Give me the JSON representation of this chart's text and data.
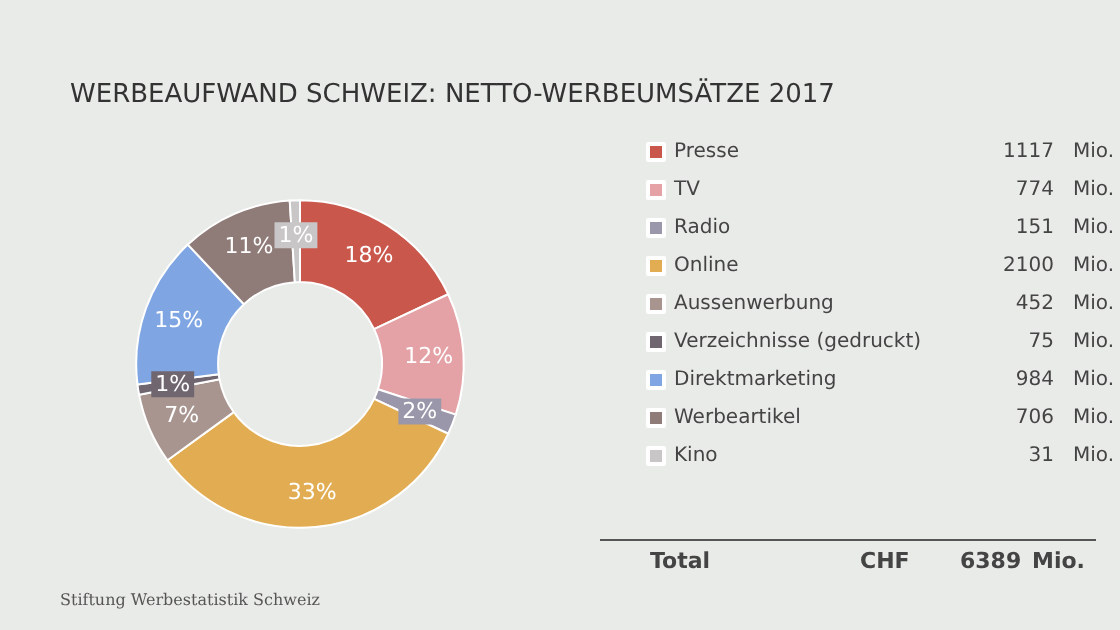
{
  "chart_data": {
    "type": "donut",
    "title": "WERBEAUFWAND SCHWEIZ: NETTO-WERBEUMSÄTZE 2017",
    "categories": [
      "Presse",
      "TV",
      "Radio",
      "Online",
      "Aussenwerbung",
      "Verzeichnisse (gedruckt)",
      "Direktmarketing",
      "Werbeartikel",
      "Kino"
    ],
    "values": [
      18,
      12,
      2,
      33,
      7,
      1,
      15,
      11,
      1
    ],
    "colors": [
      "#c9574c",
      "#e4a2a6",
      "#9a97aa",
      "#e2ad52",
      "#a8958f",
      "#6f6670",
      "#7fa6e3",
      "#8f7b78",
      "#c9c6c8"
    ],
    "value_labels": [
      "18%",
      "12%",
      "2%",
      "33%",
      "7%",
      "1%",
      "15%",
      "11%",
      "1%"
    ],
    "legend": "right",
    "annotations": [
      "1117",
      "774",
      "151",
      "2100",
      "452",
      "75",
      "984",
      "706",
      "31",
      "Mio.",
      "Total",
      "CHF",
      "6389",
      "Stiftung Werbestatistik Schweiz"
    ]
  }
}
